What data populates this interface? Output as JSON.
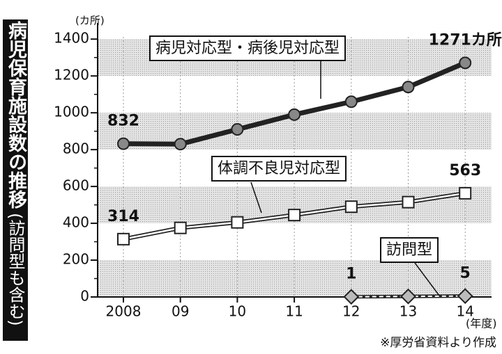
{
  "chart_data": {
    "type": "line",
    "title": "病児保育施設数の推移",
    "subtitle": "(訪問型も含む)",
    "y_unit": "(カ所)",
    "x_unit": "(年度)",
    "source": "※厚労省資料より作成",
    "categories": [
      "2008",
      "09",
      "10",
      "11",
      "12",
      "13",
      "14"
    ],
    "ylim": [
      0,
      1450
    ],
    "yticks": [
      0,
      200,
      400,
      600,
      800,
      1000,
      1200,
      1400
    ],
    "grid": true,
    "series": [
      {
        "name": "病児対応型・病後児対応型",
        "color": "#222222",
        "marker": "circle",
        "values": [
          832,
          830,
          910,
          990,
          1060,
          1140,
          1271
        ],
        "value_labels": [
          "832",
          null,
          null,
          null,
          null,
          null,
          "1271カ所"
        ]
      },
      {
        "name": "体調不良児対応型",
        "color": "#222222",
        "marker": "square",
        "values": [
          314,
          375,
          405,
          445,
          490,
          515,
          563
        ],
        "value_labels": [
          "314",
          null,
          null,
          null,
          null,
          null,
          "563"
        ]
      },
      {
        "name": "訪問型",
        "color": "#222222",
        "marker": "diamond",
        "values": [
          null,
          null,
          null,
          null,
          1,
          3,
          5
        ],
        "value_labels": [
          null,
          null,
          null,
          null,
          "1",
          null,
          "5"
        ]
      }
    ]
  }
}
